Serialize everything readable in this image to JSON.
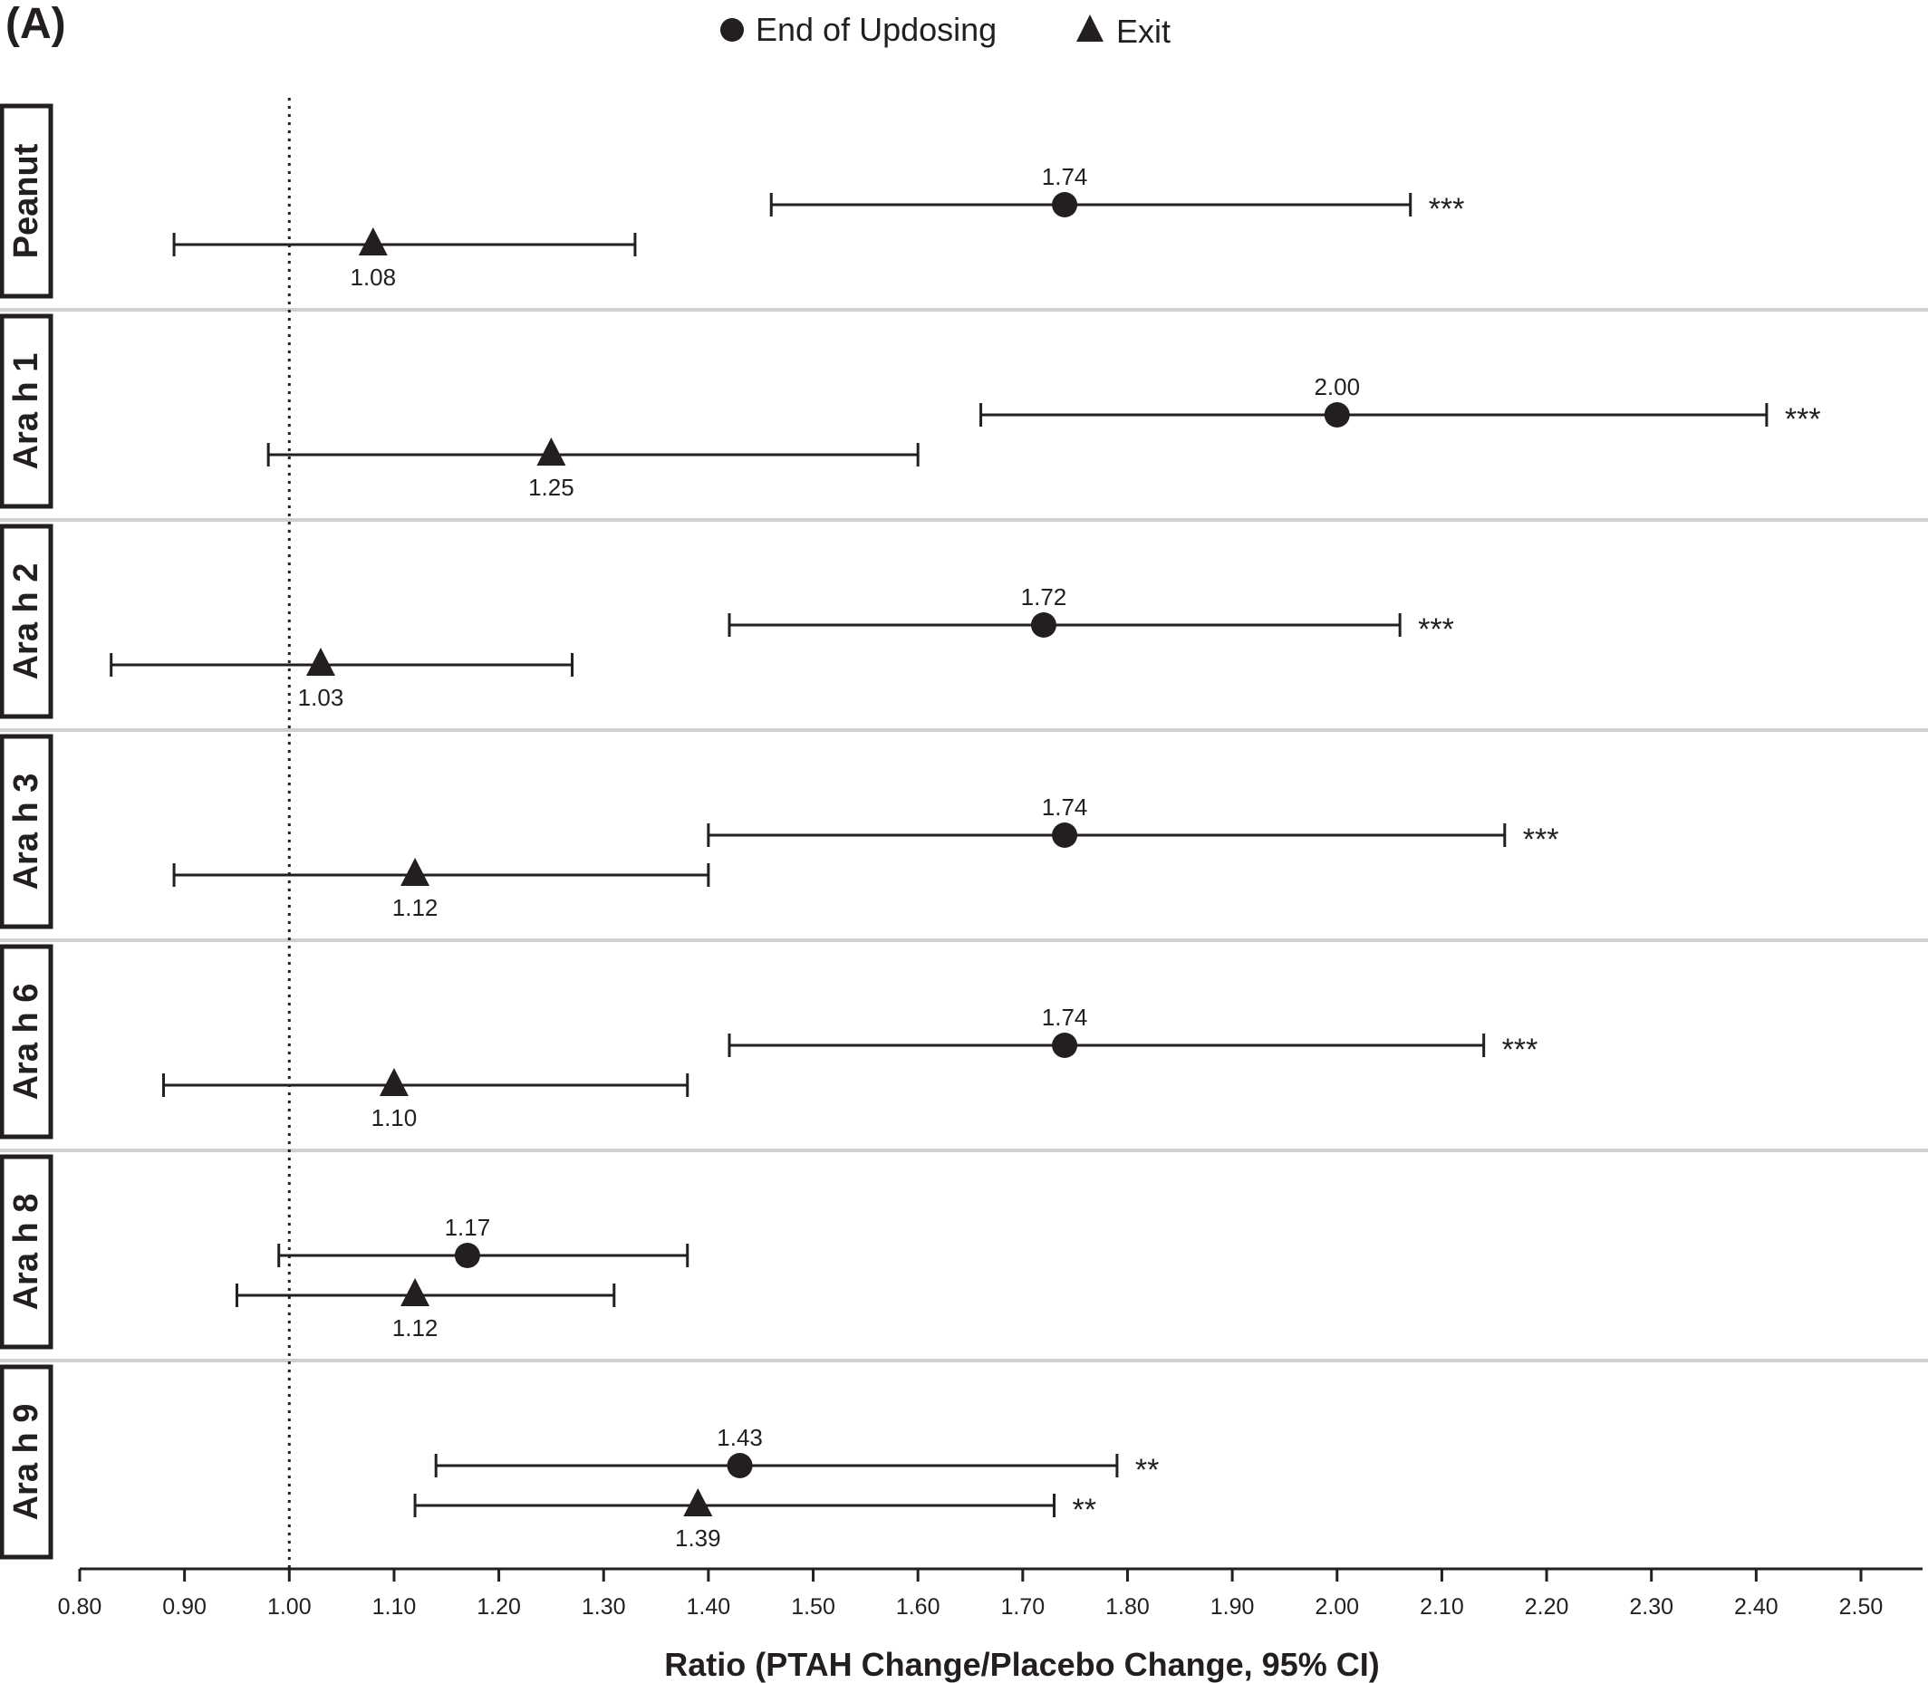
{
  "panel_label": "(A)",
  "chart_data": {
    "type": "scatter",
    "subtype": "forest-plot",
    "xlabel": "Ratio (PTAH Change/Placebo Change, 95% CI)",
    "xlim": [
      0.8,
      2.52
    ],
    "xticks": [
      "0.80",
      "0.90",
      "1.00",
      "1.10",
      "1.20",
      "1.30",
      "1.40",
      "1.50",
      "1.60",
      "1.70",
      "1.80",
      "1.90",
      "2.00",
      "2.10",
      "2.20",
      "2.30",
      "2.40",
      "2.50"
    ],
    "reference_line": 1.0,
    "legend": {
      "position": "top-center",
      "entries": [
        {
          "name": "End of Updosing",
          "marker": "circle"
        },
        {
          "name": "Exit",
          "marker": "triangle"
        }
      ]
    },
    "colors": {
      "marker": "#231f20",
      "separator": "#cfcfcf"
    },
    "groups": [
      {
        "label": "Peanut",
        "end": {
          "value": 1.74,
          "label": "1.74",
          "lo": 1.46,
          "hi": 2.07,
          "sig": "***"
        },
        "exit": {
          "value": 1.08,
          "label": "1.08",
          "lo": 0.89,
          "hi": 1.33,
          "sig": ""
        }
      },
      {
        "label": "Ara h 1",
        "end": {
          "value": 2.0,
          "label": "2.00",
          "lo": 1.66,
          "hi": 2.41,
          "sig": "***"
        },
        "exit": {
          "value": 1.25,
          "label": "1.25",
          "lo": 0.98,
          "hi": 1.6,
          "sig": ""
        }
      },
      {
        "label": "Ara h 2",
        "end": {
          "value": 1.72,
          "label": "1.72",
          "lo": 1.42,
          "hi": 2.06,
          "sig": "***"
        },
        "exit": {
          "value": 1.03,
          "label": "1.03",
          "lo": 0.83,
          "hi": 1.27,
          "sig": ""
        }
      },
      {
        "label": "Ara h 3",
        "end": {
          "value": 1.74,
          "label": "1.74",
          "lo": 1.4,
          "hi": 2.16,
          "sig": "***"
        },
        "exit": {
          "value": 1.12,
          "label": "1.12",
          "lo": 0.89,
          "hi": 1.4,
          "sig": ""
        }
      },
      {
        "label": "Ara h 6",
        "end": {
          "value": 1.74,
          "label": "1.74",
          "lo": 1.42,
          "hi": 2.14,
          "sig": "***"
        },
        "exit": {
          "value": 1.1,
          "label": "1.10",
          "lo": 0.88,
          "hi": 1.38,
          "sig": ""
        }
      },
      {
        "label": "Ara h 8",
        "end": {
          "value": 1.17,
          "label": "1.17",
          "lo": 0.99,
          "hi": 1.38,
          "sig": ""
        },
        "exit": {
          "value": 1.12,
          "label": "1.12",
          "lo": 0.95,
          "hi": 1.31,
          "sig": ""
        }
      },
      {
        "label": "Ara h 9",
        "end": {
          "value": 1.43,
          "label": "1.43",
          "lo": 1.14,
          "hi": 1.79,
          "sig": "**"
        },
        "exit": {
          "value": 1.39,
          "label": "1.39",
          "lo": 1.12,
          "hi": 1.73,
          "sig": "**"
        }
      }
    ]
  }
}
